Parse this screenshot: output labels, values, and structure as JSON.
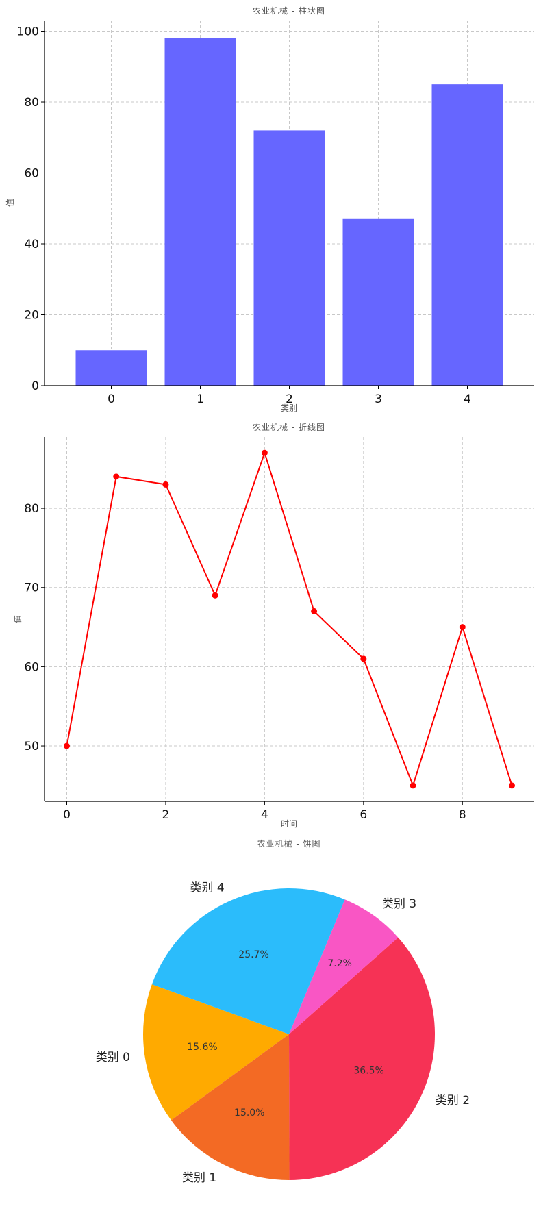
{
  "chart_data": [
    {
      "type": "bar",
      "title": "农业机械 - 柱状图",
      "xlabel": "类别",
      "ylabel": "值",
      "categories": [
        "0",
        "1",
        "2",
        "3",
        "4"
      ],
      "values": [
        10,
        98,
        72,
        47,
        85
      ],
      "ylim": [
        0,
        103
      ],
      "yticks": [
        0,
        20,
        40,
        60,
        80,
        100
      ],
      "color": "#6666ff",
      "grid": true
    },
    {
      "type": "line",
      "title": "农业机械 - 折线图",
      "xlabel": "时间",
      "ylabel": "值",
      "x": [
        0,
        1,
        2,
        3,
        4,
        5,
        6,
        7,
        8,
        9
      ],
      "values": [
        50,
        84,
        83,
        69,
        87,
        67,
        61,
        45,
        65,
        45
      ],
      "xlim": [
        -0.45,
        9.45
      ],
      "ylim": [
        43,
        89
      ],
      "xticks": [
        0,
        2,
        4,
        6,
        8
      ],
      "yticks": [
        50,
        60,
        70,
        80
      ],
      "color": "#ff0000",
      "grid": true
    },
    {
      "type": "pie",
      "title": "农业机械 - 饼图",
      "start_angle_deg": 160,
      "slices": [
        {
          "label": "类别 0",
          "value": 15.6,
          "pct_label": "15.6%",
          "color": "#ffaa00"
        },
        {
          "label": "类别 1",
          "value": 15.0,
          "pct_label": "15.0%",
          "color": "#f36a24"
        },
        {
          "label": "类别 2",
          "value": 36.5,
          "pct_label": "36.5%",
          "color": "#f63255"
        },
        {
          "label": "类别 3",
          "value": 7.2,
          "pct_label": "7.2%",
          "color": "#f956c4"
        },
        {
          "label": "类别 4",
          "value": 25.7,
          "pct_label": "25.7%",
          "color": "#2bbcfb"
        }
      ]
    }
  ]
}
